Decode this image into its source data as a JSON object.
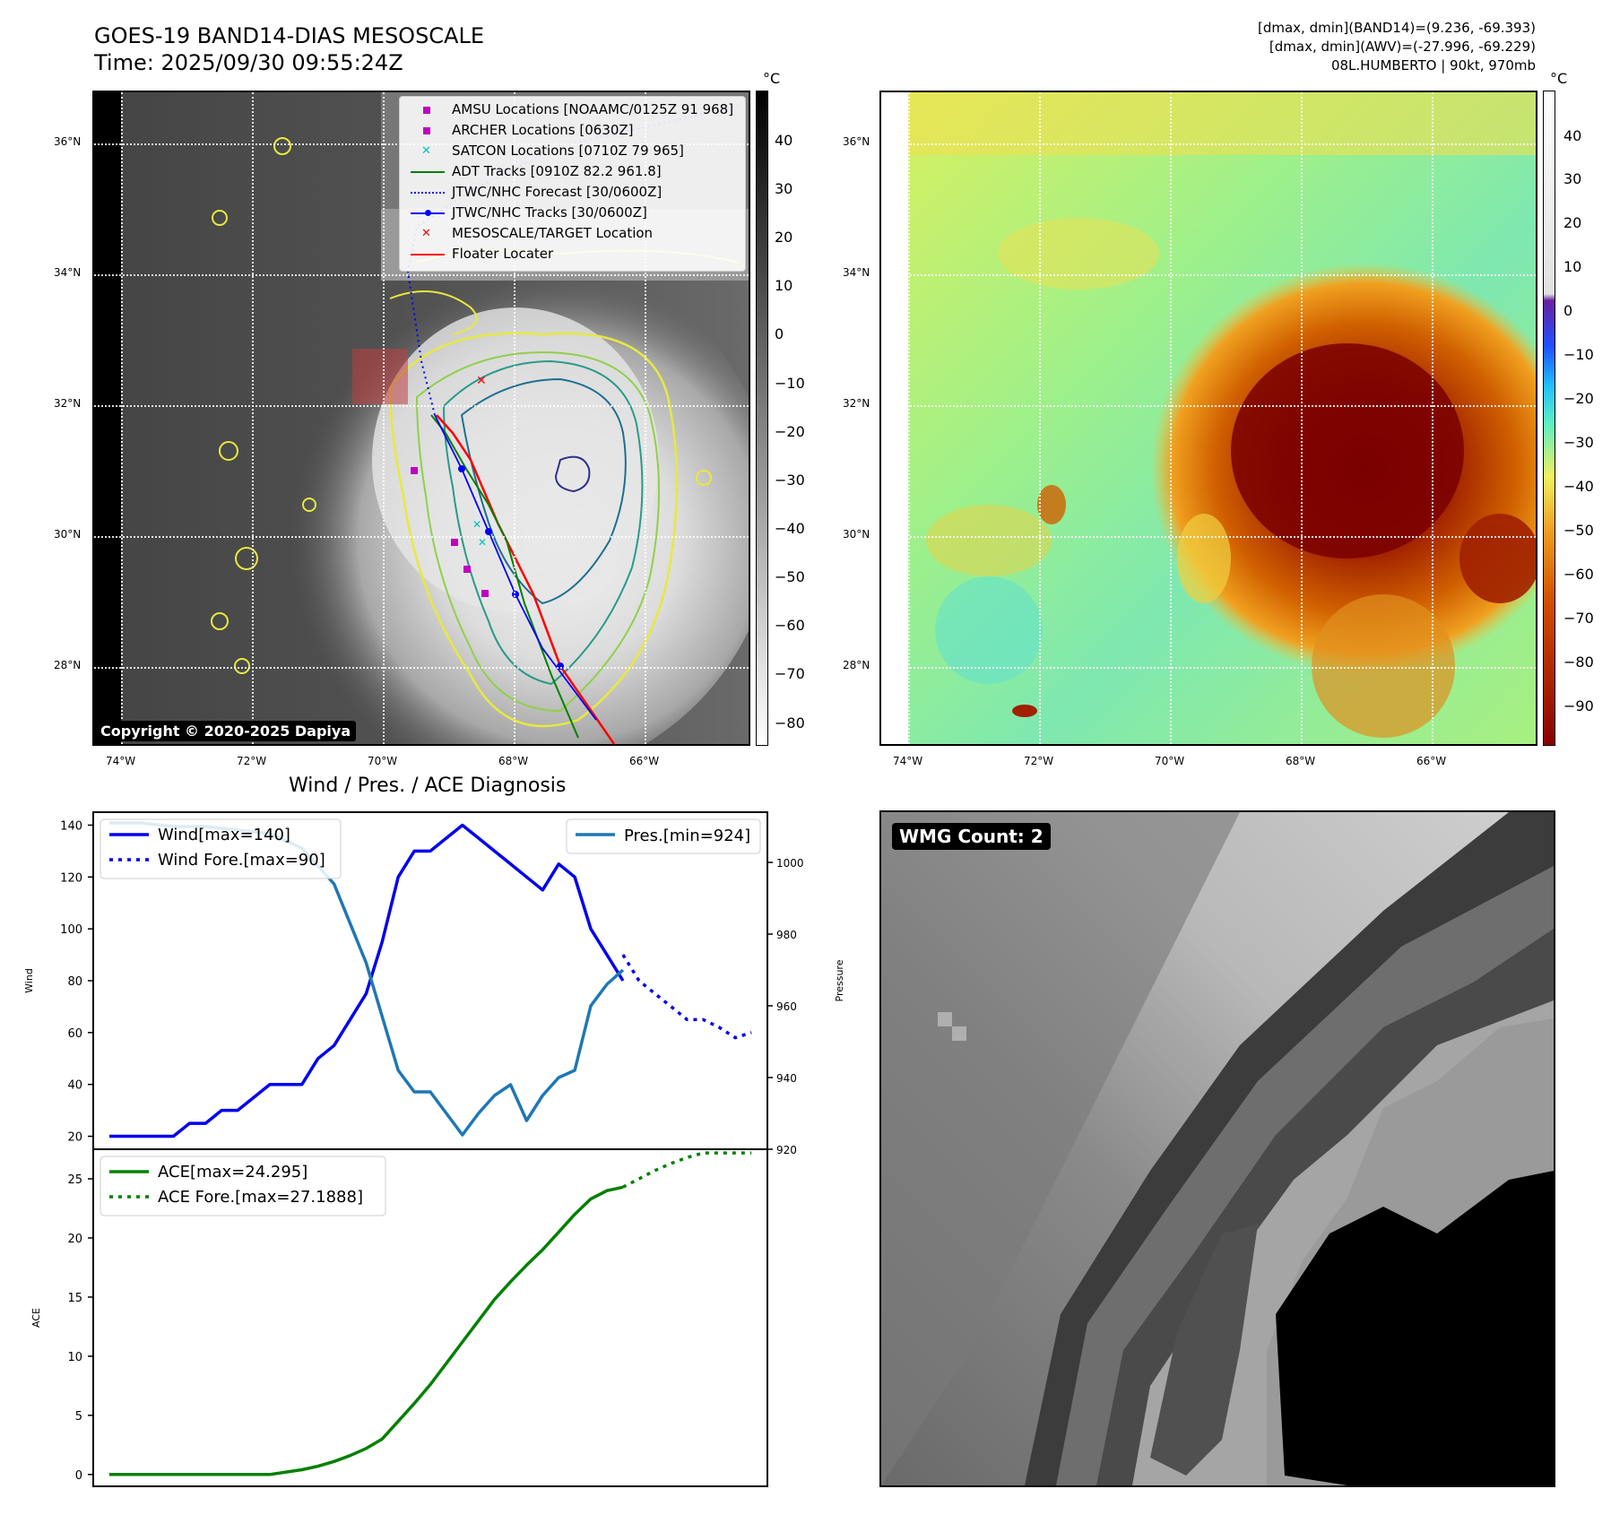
{
  "header": {
    "title": "GOES-19 BAND14-DIAS MESOSCALE",
    "time": "Time: 2025/09/30 09:55:24Z",
    "stats_band14": "[dmax, dmin](BAND14)=(9.236, -69.393)",
    "stats_awv": "[dmax, dmin](AWV)=(-27.996, -69.229)",
    "storm": "08L.HUMBERTO | 90kt, 970mb"
  },
  "map_axes": {
    "lon_labels": [
      "74°W",
      "72°W",
      "70°W",
      "68°W",
      "66°W"
    ],
    "lat_labels": [
      "36°N",
      "34°N",
      "32°N",
      "30°N",
      "28°N"
    ]
  },
  "ir_panel": {
    "colorbar_unit": "°C",
    "colorbar_ticks": [
      "40",
      "30",
      "20",
      "10",
      "0",
      "−10",
      "−20",
      "−30",
      "−40",
      "−50",
      "−60",
      "−70",
      "−80"
    ],
    "copyright": "Copyright © 2020-2025 Dapiya",
    "legend": [
      {
        "label": "AMSU Locations [NOAAMC/0125Z 91 968]",
        "color": "#c000c0",
        "marker": "square"
      },
      {
        "label": "ARCHER Locations [0630Z]",
        "color": "#c000c0",
        "marker": "square"
      },
      {
        "label": "SATCON Locations [0710Z 79 965]",
        "color": "#00bfbf",
        "marker": "x"
      },
      {
        "label": "ADT Tracks [0910Z 82.2 961.8]",
        "color": "#008000",
        "marker": "line"
      },
      {
        "label": "JTWC/NHC Forecast [30/0600Z]",
        "color": "#0000ff",
        "marker": "dotted"
      },
      {
        "label": "JTWC/NHC Tracks [30/0600Z]",
        "color": "#0000ff",
        "marker": "line-dot"
      },
      {
        "label": "MESOSCALE/TARGET Location",
        "color": "#ff0000",
        "marker": "x"
      },
      {
        "label": "Floater Locater",
        "color": "#ff0000",
        "marker": "line"
      }
    ]
  },
  "awv_panel": {
    "colorbar_unit": "°C",
    "colorbar_ticks": [
      "40",
      "30",
      "20",
      "10",
      "0",
      "−10",
      "−20",
      "−30",
      "−40",
      "−50",
      "−60",
      "−70",
      "−80",
      "−90"
    ]
  },
  "wmg_panel": {
    "label": "WMG Count: 2"
  },
  "chart_data": [
    {
      "type": "line",
      "title": "Wind / Pres. / ACE Diagnosis",
      "ylabel": "Wind",
      "y2label": "Pressure",
      "ylim": [
        15,
        145
      ],
      "y2lim": [
        920,
        1014
      ],
      "yticks": [
        20,
        40,
        60,
        80,
        100,
        120,
        140
      ],
      "y2ticks": [
        920,
        940,
        960,
        980,
        1000
      ],
      "series": [
        {
          "name": "Wind[max=140]",
          "color": "#0000ee",
          "style": "solid",
          "axis": "left",
          "x": [
            0,
            1,
            2,
            3,
            4,
            5,
            6,
            7,
            8,
            9,
            10,
            11,
            12,
            13,
            14,
            15,
            16,
            17,
            18,
            19,
            20,
            21,
            22,
            23,
            24,
            25,
            26,
            27,
            28,
            29,
            30,
            31,
            32
          ],
          "values": [
            20,
            20,
            20,
            20,
            20,
            25,
            25,
            30,
            30,
            35,
            40,
            40,
            40,
            50,
            55,
            65,
            75,
            95,
            120,
            130,
            130,
            135,
            140,
            135,
            130,
            125,
            120,
            115,
            125,
            120,
            100,
            90,
            80
          ]
        },
        {
          "name": "Wind Fore.[max=90]",
          "color": "#0000ee",
          "style": "dotted",
          "axis": "left",
          "x": [
            32,
            33,
            34,
            35,
            36,
            37,
            38,
            39,
            40
          ],
          "values": [
            90,
            80,
            75,
            70,
            65,
            65,
            62,
            58,
            60
          ]
        },
        {
          "name": "Pres.[min=924]",
          "color": "#1f77b4",
          "style": "solid",
          "axis": "right",
          "x": [
            0,
            2,
            4,
            6,
            8,
            10,
            12,
            14,
            16,
            18,
            19,
            20,
            21,
            22,
            23,
            24,
            25,
            26,
            27,
            28,
            29,
            30,
            31,
            32
          ],
          "values": [
            1011,
            1011,
            1010,
            1010,
            1009,
            1008,
            1004,
            994,
            972,
            942,
            936,
            936,
            930,
            924,
            930,
            935,
            938,
            928,
            935,
            940,
            942,
            960,
            966,
            970
          ]
        }
      ]
    },
    {
      "type": "line",
      "ylabel": "ACE",
      "ylim": [
        -1,
        27.5
      ],
      "yticks": [
        0,
        5,
        10,
        15,
        20,
        25
      ],
      "series": [
        {
          "name": "ACE[max=24.295]",
          "color": "#008000",
          "style": "solid",
          "x": [
            0,
            2,
            4,
            6,
            8,
            10,
            12,
            13,
            14,
            15,
            16,
            17,
            18,
            19,
            20,
            21,
            22,
            23,
            24,
            25,
            26,
            27,
            28,
            29,
            30,
            31,
            32
          ],
          "values": [
            0,
            0,
            0,
            0,
            0,
            0,
            0.4,
            0.7,
            1.1,
            1.6,
            2.2,
            3.0,
            4.5,
            6.0,
            7.6,
            9.4,
            11.2,
            13.0,
            14.8,
            16.3,
            17.7,
            19.0,
            20.5,
            22.0,
            23.3,
            24.0,
            24.295
          ]
        },
        {
          "name": "ACE Fore.[max=27.1888]",
          "color": "#008000",
          "style": "dotted",
          "x": [
            32,
            33,
            34,
            35,
            36,
            37,
            38,
            39,
            40
          ],
          "values": [
            24.3,
            25.0,
            25.7,
            26.3,
            26.8,
            27.19,
            27.19,
            27.19,
            27.19
          ]
        }
      ]
    }
  ]
}
